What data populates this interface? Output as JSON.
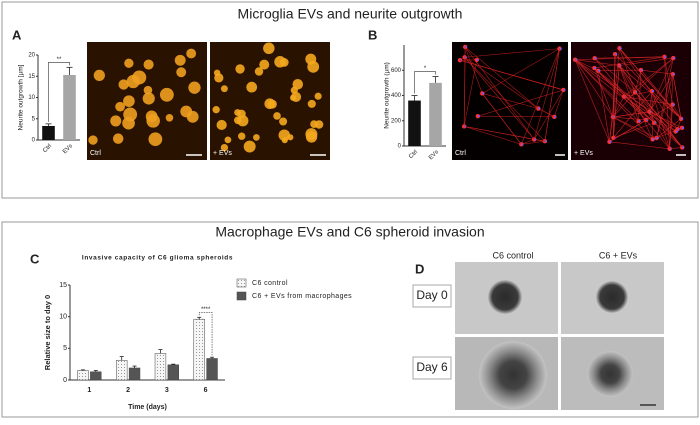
{
  "sections": [
    {
      "title": "Microglia EVs and neurite outgrowth"
    },
    {
      "title": "Macrophage EVs and C6 spheroid invasion"
    }
  ],
  "panel_labels": [
    "A",
    "B",
    "C",
    "D"
  ],
  "image_labels": [
    "Ctrl",
    "+ EVs",
    "Ctrl",
    "+ EVs"
  ],
  "panel_d": {
    "columns": [
      "C6 control",
      "C6 + EVs"
    ],
    "rows": [
      "Day 0",
      "Day 6"
    ]
  },
  "chart_data": [
    {
      "type": "bar",
      "ylabel": "Neurite outgrowth [µm]",
      "categories": [
        "Ctrl",
        "EVs"
      ],
      "values": [
        3.3,
        15.3
      ],
      "errors": [
        0.5,
        1.8
      ],
      "colors": [
        "#111111",
        "#a6a6a6"
      ],
      "ylim": [
        0,
        20
      ],
      "yticks": [
        0,
        5,
        10,
        15,
        20
      ],
      "annotation": "**"
    },
    {
      "type": "bar",
      "ylabel": "Neurite outgrowth (µm)",
      "categories": [
        "Ctrl",
        "EVs"
      ],
      "values": [
        360,
        500
      ],
      "errors": [
        40,
        50
      ],
      "colors": [
        "#111111",
        "#a6a6a6"
      ],
      "ylim": [
        0,
        800
      ],
      "yticks": [
        0,
        200,
        400,
        600
      ],
      "annotation": "*"
    },
    {
      "type": "bar",
      "title": "Invasive capacity of C6 glioma spheroids",
      "xlabel": "Time (days)",
      "ylabel": "Relative size to day 0",
      "categories": [
        "1",
        "2",
        "3",
        "6"
      ],
      "series": [
        {
          "name": "C6 control",
          "color": "#f4f4f4",
          "pattern": "dots",
          "values": [
            1.5,
            3.1,
            4.2,
            9.6
          ],
          "errors": [
            0.1,
            0.6,
            0.6,
            0.3
          ]
        },
        {
          "name": "C6 + EVs from macrophages",
          "color": "#555555",
          "values": [
            1.3,
            1.9,
            2.4,
            3.4
          ],
          "errors": [
            0.2,
            0.3,
            0.1,
            0.2
          ]
        }
      ],
      "ylim": [
        0,
        15
      ],
      "yticks": [
        0,
        5,
        10,
        15
      ],
      "annotation": "****"
    }
  ]
}
